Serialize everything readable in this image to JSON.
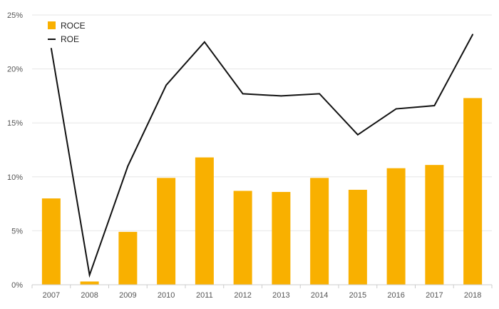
{
  "chart_data": {
    "type": "bar",
    "title": "",
    "xlabel": "",
    "ylabel": "",
    "categories": [
      "2007",
      "2008",
      "2009",
      "2010",
      "2011",
      "2012",
      "2013",
      "2014",
      "2015",
      "2016",
      "2017",
      "2018"
    ],
    "y_ticks": [
      "0%",
      "5%",
      "10%",
      "15%",
      "20%",
      "25%"
    ],
    "ylim": [
      0,
      25
    ],
    "grid": true,
    "legend_position": "top-left",
    "series": [
      {
        "name": "ROCE",
        "type": "bar",
        "color": "#F9B000",
        "values": [
          8.0,
          0.3,
          4.9,
          9.9,
          11.8,
          8.7,
          8.6,
          9.9,
          8.8,
          10.8,
          11.1,
          17.3
        ]
      },
      {
        "name": "ROE",
        "type": "line",
        "color": "#111111",
        "values": [
          21.9,
          0.9,
          11.0,
          18.5,
          22.5,
          17.7,
          17.5,
          17.7,
          13.9,
          16.3,
          16.6,
          23.2
        ]
      }
    ]
  }
}
